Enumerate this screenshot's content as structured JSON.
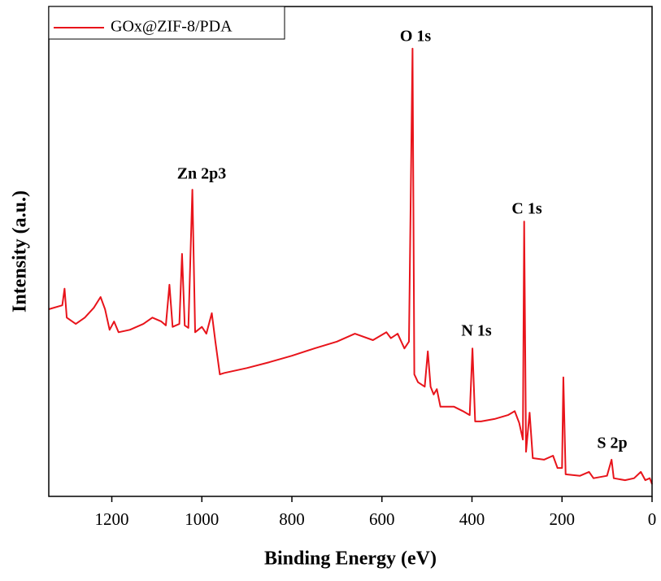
{
  "chart_data": {
    "type": "line",
    "xlabel": "Binding Energy (eV)",
    "ylabel": "Intensity (a.u.)",
    "xlim": [
      1340,
      0
    ],
    "xticks": [
      1200,
      1000,
      800,
      600,
      400,
      200,
      0
    ],
    "ylim": [
      0,
      100
    ],
    "legend": "upper left",
    "grid": false,
    "annotations": [
      "Zn 2p3",
      "O 1s",
      "N 1s",
      "C 1s",
      "S 2p"
    ],
    "x": [
      1340,
      1310,
      1305,
      1300,
      1280,
      1260,
      1240,
      1225,
      1215,
      1205,
      1195,
      1185,
      1160,
      1130,
      1110,
      1090,
      1080,
      1072,
      1065,
      1050,
      1044,
      1038,
      1030,
      1021,
      1015,
      1000,
      990,
      978,
      970,
      960,
      950,
      900,
      850,
      800,
      750,
      700,
      660,
      620,
      590,
      580,
      565,
      550,
      540,
      532,
      528,
      520,
      505,
      498,
      492,
      485,
      478,
      470,
      440,
      420,
      405,
      399,
      393,
      380,
      350,
      320,
      305,
      295,
      287,
      284,
      280,
      272,
      265,
      240,
      220,
      210,
      200,
      197,
      192,
      160,
      140,
      130,
      100,
      90,
      85,
      60,
      40,
      25,
      15,
      5,
      0
    ],
    "series": [
      {
        "name": "GOx@ZIF-8/PDA",
        "color": "#e8141b",
        "values": [
          38.2,
          39,
          42.4,
          36.5,
          35.2,
          36.5,
          38.5,
          40.7,
          38.2,
          34,
          35.7,
          33.5,
          34,
          35.2,
          36.5,
          35.7,
          34.9,
          43.2,
          34.6,
          35.2,
          49.5,
          34.9,
          34.4,
          62.6,
          33.5,
          34.6,
          33.2,
          37.4,
          31.6,
          24.9,
          25.2,
          26.2,
          27.4,
          28.7,
          30.2,
          31.6,
          33.2,
          31.9,
          33.5,
          32.3,
          33.2,
          30.2,
          31.6,
          91.4,
          24.9,
          23.3,
          22.4,
          29.6,
          22.4,
          20.8,
          21.9,
          18.3,
          18.3,
          17.4,
          16.6,
          30.2,
          15.3,
          15.3,
          15.8,
          16.6,
          17.4,
          15.0,
          11.6,
          56.1,
          9.1,
          17.1,
          7.8,
          7.5,
          8.3,
          5.8,
          5.8,
          24.3,
          4.5,
          4.2,
          5.0,
          3.7,
          4.2,
          7.5,
          3.7,
          3.3,
          3.7,
          5.0,
          3.3,
          3.7,
          2.5
        ]
      }
    ]
  }
}
